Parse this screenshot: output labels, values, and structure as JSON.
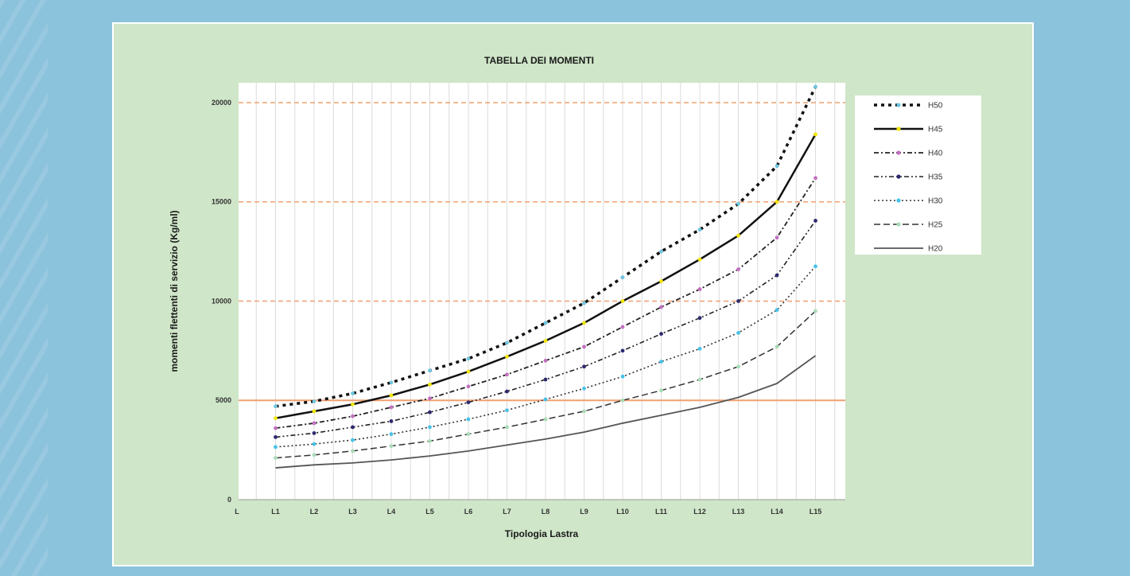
{
  "chart_data": {
    "type": "line",
    "title": "TABELLA DEI MOMENTI",
    "xlabel": "Tipologia Lastra",
    "ylabel": "momenti flettenti di servizio (Kg/ml)",
    "categories": [
      "L",
      "L1",
      "L2",
      "L3",
      "L4",
      "L5",
      "L6",
      "L7",
      "L8",
      "L9",
      "L10",
      "L11",
      "L12",
      "L13",
      "L14",
      "L15"
    ],
    "yticks": [
      0,
      5000,
      10000,
      15000,
      20000
    ],
    "ylim": [
      0,
      21000
    ],
    "grid": true,
    "legend": "right",
    "reference_lines": [
      {
        "y": 5000,
        "style": "solid",
        "color": "#f0a070"
      },
      {
        "y": 10000,
        "style": "dashed",
        "color": "#f0a070"
      },
      {
        "y": 15000,
        "style": "dashed",
        "color": "#f0a070"
      },
      {
        "y": 20000,
        "style": "dashed",
        "color": "#f0a070"
      }
    ],
    "series": [
      {
        "name": "H50",
        "color": "#111111",
        "dash": "4,5",
        "width": 3.5,
        "marker": "#6ec6e0",
        "values": [
          null,
          4700,
          4950,
          5350,
          5900,
          6500,
          7100,
          7900,
          8900,
          9900,
          11200,
          12500,
          13600,
          14900,
          16800,
          20800
        ]
      },
      {
        "name": "H45",
        "color": "#111111",
        "dash": "",
        "width": 2.5,
        "marker": "#f2e600",
        "values": [
          null,
          4100,
          4450,
          4800,
          5250,
          5800,
          6450,
          7200,
          8000,
          8900,
          10000,
          11000,
          12100,
          13300,
          15000,
          18400
        ]
      },
      {
        "name": "H40",
        "color": "#222222",
        "dash": "6,3,2,3",
        "width": 1.8,
        "marker": "#c36fc0",
        "values": [
          null,
          3600,
          3850,
          4200,
          4650,
          5100,
          5700,
          6300,
          7000,
          7700,
          8700,
          9700,
          10600,
          11600,
          13200,
          16200
        ]
      },
      {
        "name": "H35",
        "color": "#222222",
        "dash": "6,3,2,3,2,3",
        "width": 1.6,
        "marker": "#2e2a6e",
        "values": [
          null,
          3150,
          3350,
          3650,
          3950,
          4400,
          4900,
          5450,
          6050,
          6700,
          7500,
          8350,
          9150,
          10000,
          11300,
          14050
        ]
      },
      {
        "name": "H30",
        "color": "#333333",
        "dash": "2,3",
        "width": 1.6,
        "marker": "#46c2e8",
        "values": [
          null,
          2650,
          2800,
          3000,
          3300,
          3650,
          4050,
          4500,
          5050,
          5600,
          6200,
          6950,
          7600,
          8400,
          9550,
          11750
        ]
      },
      {
        "name": "H25",
        "color": "#333333",
        "dash": "8,4",
        "width": 1.5,
        "marker": "#a8dbb6",
        "values": [
          null,
          2100,
          2250,
          2450,
          2700,
          2950,
          3300,
          3650,
          4050,
          4450,
          5000,
          5500,
          6050,
          6700,
          7700,
          9500
        ]
      },
      {
        "name": "H20",
        "color": "#555555",
        "dash": "",
        "width": 1.8,
        "marker": null,
        "values": [
          null,
          1600,
          1750,
          1850,
          2000,
          2200,
          2450,
          2750,
          3050,
          3400,
          3850,
          4250,
          4650,
          5150,
          5850,
          7250
        ]
      }
    ]
  }
}
